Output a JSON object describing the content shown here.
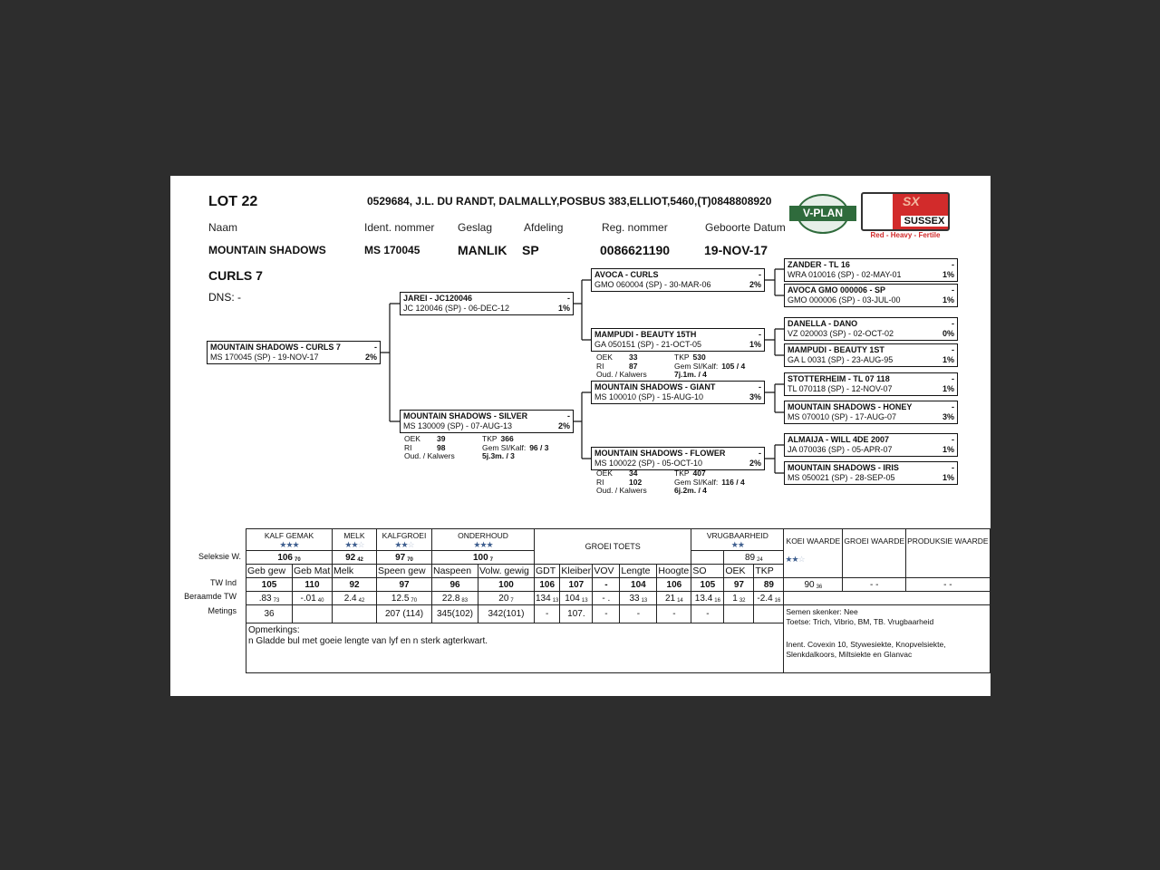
{
  "header": {
    "lot": "LOT 22",
    "owner": "0529684, J.L. DU RANDT, DALMALLY,POSBUS 383,ELLIOT,5460,(T)0848808920",
    "labels": {
      "naam": "Naam",
      "ident": "Ident. nommer",
      "geslag": "Geslag",
      "afdeling": "Afdeling",
      "reg": "Reg. nommer",
      "geboorte": "Geboorte Datum"
    },
    "values": {
      "naam": "MOUNTAIN SHADOWS",
      "ident": "MS  170045",
      "geslag": "MANLIK",
      "afdeling": "SP",
      "reg": "0086621190",
      "geboorte": "19-NOV-17"
    },
    "naam2": "CURLS 7",
    "dns": "DNS: -"
  },
  "logos": {
    "vplan": "V-PLAN",
    "sussex": "SUSSEX",
    "sussex_sx": "SX",
    "sussex_tagline": "Red - Heavy - Fertile"
  },
  "pedigree": [
    {
      "name": "MOUNTAIN SHADOWS -  CURLS 7",
      "mark": "-",
      "line": "MS  170045 (SP) - 19-NOV-17",
      "pct": "2%"
    },
    {
      "name": "JAREI -  JC120046",
      "mark": "-",
      "line": "JC  120046 (SP) - 06-DEC-12",
      "pct": "1%"
    },
    {
      "name": "MOUNTAIN SHADOWS -  SILVER",
      "mark": "-",
      "line": "MS  130009 (SP) - 07-AUG-13",
      "pct": "2%"
    },
    {
      "name": "AVOCA -  CURLS",
      "mark": "-",
      "line": "GMO 060004 (SP) - 30-MAR-06",
      "pct": "2%"
    },
    {
      "name": "MAMPUDI -  BEAUTY 15TH",
      "mark": "-",
      "line": "GA  050151 (SP) - 21-OCT-05",
      "pct": "1%"
    },
    {
      "name": "MOUNTAIN SHADOWS -  GIANT",
      "mark": "-",
      "line": "MS  100010 (SP) - 15-AUG-10",
      "pct": "3%"
    },
    {
      "name": "MOUNTAIN SHADOWS -  FLOWER",
      "mark": "-",
      "line": "MS  100022 (SP) - 05-OCT-10",
      "pct": "2%"
    },
    {
      "name": "ZANDER -  TL 16",
      "mark": "-",
      "line": "WRA 010016 (SP) - 02-MAY-01",
      "pct": "1%"
    },
    {
      "name": "AVOCA GMO 000006 - SP",
      "mark": "-",
      "line": "GMO 000006 (SP) - 03-JUL-00",
      "pct": "1%"
    },
    {
      "name": "DANELLA -  DANO",
      "mark": "-",
      "line": "VZ  020003 (SP) - 02-OCT-02",
      "pct": "0%"
    },
    {
      "name": "MAMPUDI -  BEAUTY 1ST",
      "mark": "-",
      "line": "GA  L 0031 (SP) - 23-AUG-95",
      "pct": "1%"
    },
    {
      "name": "STOTTERHEIM -  TL 07 118",
      "mark": "-",
      "line": "TL  070118 (SP) - 12-NOV-07",
      "pct": "1%"
    },
    {
      "name": "MOUNTAIN SHADOWS -  HONEY",
      "mark": "-",
      "line": "MS  070010 (SP) - 17-AUG-07",
      "pct": "3%"
    },
    {
      "name": "ALMAIJA -  WILL 4DE 2007",
      "mark": "-",
      "line": "JA  070036 (SP) - 05-APR-07",
      "pct": "1%"
    },
    {
      "name": "MOUNTAIN SHADOWS -  IRIS",
      "mark": "-",
      "line": "MS  050021 (SP) - 28-SEP-05",
      "pct": "1%"
    }
  ],
  "stats": [
    {
      "for": "MOUNTAIN SHADOWS -  SILVER",
      "oek": "39",
      "tkp": "366",
      "ri": "98",
      "gem": "96 / 3",
      "oud": "5j.3m. / 3"
    },
    {
      "for": "MAMPUDI -  BEAUTY 15TH",
      "oek": "33",
      "tkp": "530",
      "ri": "87",
      "gem": "105 / 4",
      "oud": "7j.1m. / 4"
    },
    {
      "for": "MOUNTAIN SHADOWS -  FLOWER",
      "oek": "34",
      "tkp": "407",
      "ri": "102",
      "gem": "116 / 4",
      "oud": "6j.2m. / 4"
    }
  ],
  "stat_labels": {
    "oek": "OEK",
    "tkp": "TKP",
    "ri": "RI",
    "gem": "Gem SI/Kalf:",
    "oud": "Oud. / Kalwers"
  },
  "table": {
    "row_labels": {
      "seleksie": "Seleksie W.",
      "tw": "TW Ind",
      "ber": "Beraamde TW",
      "met": "Metings"
    },
    "groups": [
      {
        "label": "KALF GEMAK",
        "stars": {
          "filled": 3,
          "total": 3
        },
        "value": "106",
        "sub": "70"
      },
      {
        "label": "MELK",
        "stars": {
          "filled": 2,
          "total": 3
        },
        "value": "92",
        "sub": "42"
      },
      {
        "label": "KALFGROEI",
        "stars": {
          "filled": 2,
          "total": 3
        },
        "value": "97",
        "sub": "70"
      },
      {
        "label": "ONDERHOUD",
        "stars": {
          "filled": 3,
          "total": 3
        },
        "value": "100",
        "sub": "7"
      },
      {
        "label": "GROEI TOETS"
      },
      {
        "label": "VRUGBAARHEID",
        "stars": {
          "filled": 2,
          "total": 2
        },
        "value": "89",
        "sub": "24"
      }
    ],
    "columns": [
      {
        "label": "Geb gew",
        "tw": "105",
        "ber": ".83",
        "ber_sub": "73",
        "met": "36"
      },
      {
        "label": "Geb Mat",
        "tw": "110",
        "ber": "-.01",
        "ber_sub": "40",
        "met": ""
      },
      {
        "label": "Melk",
        "tw": "92",
        "ber": "2.4",
        "ber_sub": "42",
        "met": ""
      },
      {
        "label": "Speen gew",
        "tw": "97",
        "ber": "12.5",
        "ber_sub": "70",
        "met": "207 (114)"
      },
      {
        "label": "Naspeen",
        "tw": "96",
        "ber": "22.8",
        "ber_sub": "83",
        "met": "345(102)"
      },
      {
        "label": "Volw. gewig",
        "tw": "100",
        "ber": "20",
        "ber_sub": "7",
        "met": "342(101)"
      },
      {
        "label": "GDT",
        "tw": "106",
        "ber": "134",
        "ber_sub": "13",
        "met": "-"
      },
      {
        "label": "Kleiber",
        "tw": "107",
        "ber": "104",
        "ber_sub": "13",
        "met": "107."
      },
      {
        "label": "VOV",
        "tw": "-",
        "ber": "- .",
        "ber_sub": "",
        "met": "-"
      },
      {
        "label": "Lengte",
        "tw": "104",
        "ber": "33",
        "ber_sub": "13",
        "met": "-"
      },
      {
        "label": "Hoogte",
        "tw": "106",
        "ber": "21",
        "ber_sub": "14",
        "met": "-"
      },
      {
        "label": "SO",
        "tw": "105",
        "ber": "13.4",
        "ber_sub": "16",
        "met": "-"
      },
      {
        "label": "OEK",
        "tw": "97",
        "ber": "1",
        "ber_sub": "32",
        "met": ""
      },
      {
        "label": "TKP",
        "tw": "89",
        "ber": "-2.4",
        "ber_sub": "16",
        "met": ""
      }
    ],
    "waarde": [
      {
        "label": "KOEI WAARDE",
        "stars": {
          "filled": 2,
          "total": 3
        },
        "value": "90",
        "sub": "36"
      },
      {
        "label": "GROEI WAARDE",
        "value": "- -"
      },
      {
        "label": "PRODUKSIE WAARDE",
        "value": "- -"
      }
    ],
    "opmerkings_label": "Opmerkings:",
    "opmerkings": "n Gladde bul met goeie lengte van lyf en n sterk agterkwart.",
    "notes": {
      "semen": "Semen skenker: Nee",
      "toetse": "Toetse: Trich, Vibrio, BM, TB. Vrugbaarheid",
      "inent": "Inent. Covexin 10, Stywesiekte, Knopvelsiekte, Slenkdalkoors, Miltsiekte en Glanvac"
    }
  },
  "colors": {
    "background": "#2d2d2d",
    "page": "#ffffff",
    "star": "#3f5f8f",
    "logo_green": "#2f6b3c",
    "logo_red": "#d22b2b"
  }
}
